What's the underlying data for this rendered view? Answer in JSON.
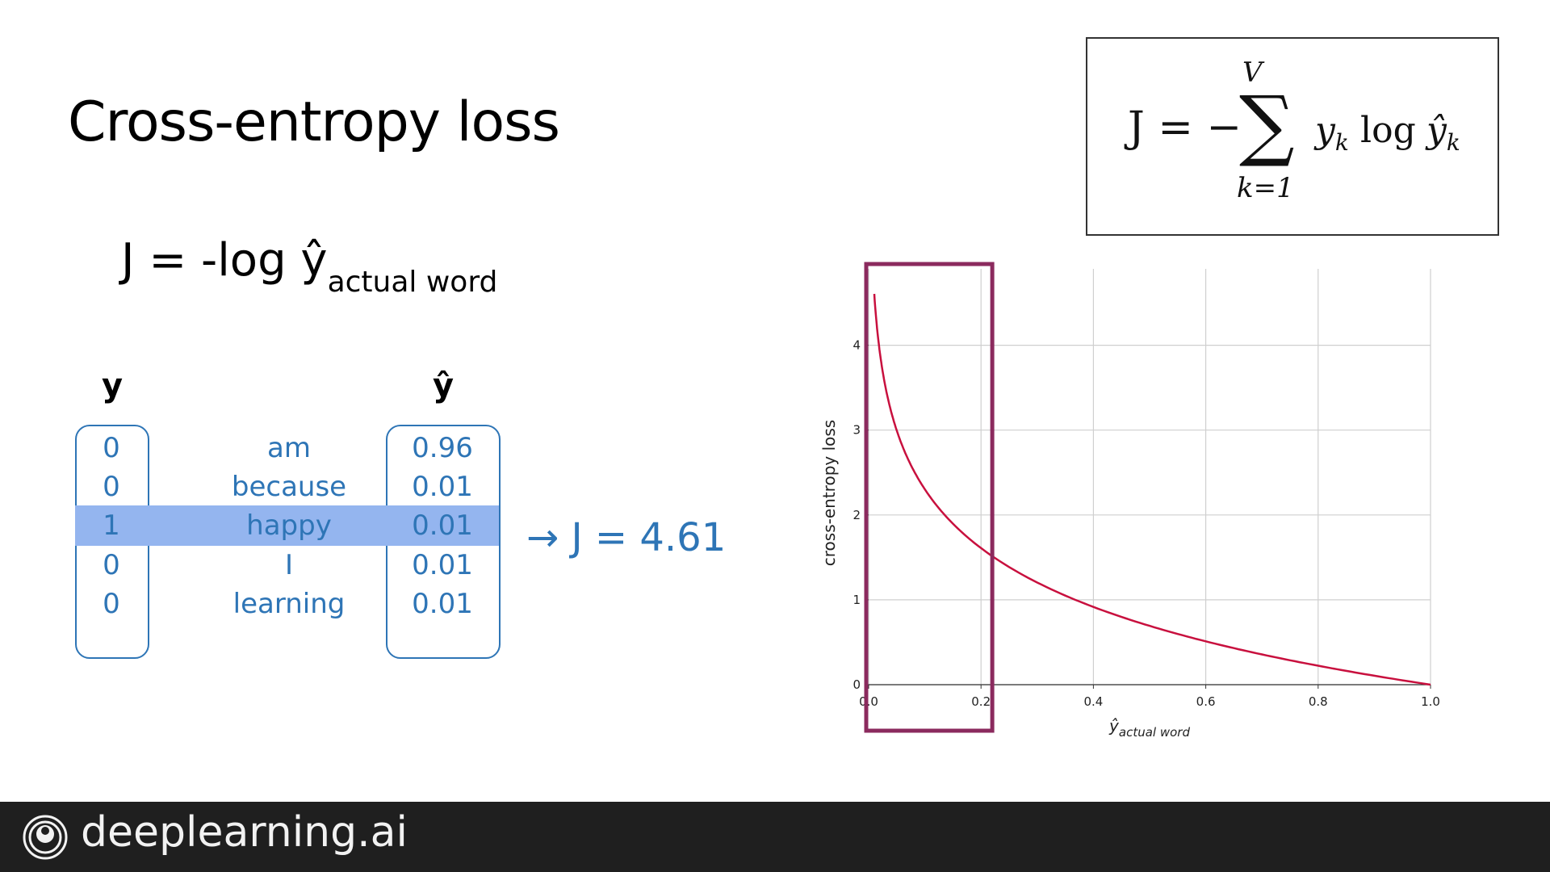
{
  "slide": {
    "title": "Cross-entropy loss",
    "formula_simple": {
      "lhs": "J = -log ŷ",
      "subscript": "actual word"
    },
    "formula_general": {
      "lhs": "J = −",
      "sum_upper": "V",
      "sum_lower": "k=1",
      "term1": "y",
      "term1_sub": "k",
      "log": "log",
      "term2": "ŷ",
      "term2_sub": "k"
    },
    "vector_headers": {
      "y": "y",
      "yhat": "ŷ"
    },
    "rows": [
      {
        "y": "0",
        "word": "am",
        "yhat": "0.96",
        "highlight": false
      },
      {
        "y": "0",
        "word": "because",
        "yhat": "0.01",
        "highlight": false
      },
      {
        "y": "1",
        "word": "happy",
        "yhat": "0.01",
        "highlight": true
      },
      {
        "y": "0",
        "word": "I",
        "yhat": "0.01",
        "highlight": false
      },
      {
        "y": "0",
        "word": "learning",
        "yhat": "0.01",
        "highlight": false
      }
    ],
    "result": "→ J = 4.61",
    "colors": {
      "accent": "#2e75b6",
      "highlight": "#94b5ef",
      "curve": "#c8103e",
      "box": "#8b2a5e"
    }
  },
  "chart_data": {
    "type": "line",
    "function": "-log(x)",
    "ylabel": "cross-entropy loss",
    "xlabel_main": "ŷ",
    "xlabel_sub": "actual word",
    "xlim": [
      0,
      1.0
    ],
    "ylim": [
      0,
      4.9
    ],
    "xticks": [
      "0.0",
      "0.2",
      "0.4",
      "0.6",
      "0.8",
      "1.0"
    ],
    "yticks": [
      "0",
      "1",
      "2",
      "3",
      "4"
    ],
    "x": [
      0.01,
      0.02,
      0.03,
      0.05,
      0.07,
      0.1,
      0.15,
      0.2,
      0.3,
      0.4,
      0.5,
      0.6,
      0.7,
      0.8,
      0.9,
      1.0
    ],
    "y": [
      4.61,
      3.91,
      3.51,
      3.0,
      2.66,
      2.3,
      1.9,
      1.61,
      1.2,
      0.92,
      0.69,
      0.51,
      0.36,
      0.22,
      0.11,
      0.0
    ],
    "grid": true,
    "highlight_region": [
      0.0,
      0.22
    ]
  },
  "footer": {
    "brand": "deeplearning.ai"
  }
}
